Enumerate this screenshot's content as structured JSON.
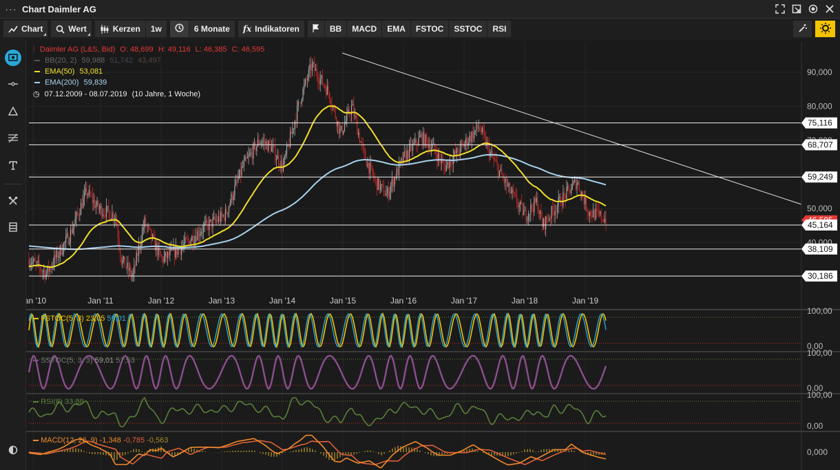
{
  "window": {
    "title": "Chart Daimler AG"
  },
  "toolbar": {
    "chart": "Chart",
    "value": "Wert",
    "candles": "Kerzen",
    "interval": "1w",
    "range": "6 Monate",
    "indicators": "Indikatoren",
    "quick": [
      "BB",
      "MACD",
      "EMA",
      "FSTOC",
      "SSTOC",
      "RSI"
    ]
  },
  "legend": {
    "main": "Daimler AG (L&S, Bid)",
    "o": "O: 48,699",
    "h": "H: 49,116",
    "l": "L: 46,385",
    "c": "C: 46,595",
    "bb_name": "BB(20, 2)",
    "bb_v1": "59,988",
    "bb_v2": "51,742",
    "bb_v3": "43,497",
    "ema50_name": "EMA(50)",
    "ema50_val": "53,081",
    "ema200_name": "EMA(200)",
    "ema200_val": "59,839",
    "period": "07.12.2009 - 08.07.2019",
    "period_note": "(10 Jahre, 1 Woche)"
  },
  "price_axis": [
    "90,000",
    "80,000",
    "70,000",
    "60,000",
    "50,000",
    "40,000"
  ],
  "levels": [
    "75,116",
    "68,707",
    "59,249",
    "45,164",
    "38,109",
    "30,186"
  ],
  "current_price": "46,595",
  "time_axis": [
    "Jan '10",
    "Jan '11",
    "Jan '12",
    "Jan '13",
    "Jan '14",
    "Jan '15",
    "Jan '16",
    "Jan '17",
    "Jan '18",
    "Jan '19"
  ],
  "panels": {
    "fstoc": {
      "name": "FSTOC(5, 3)",
      "v1": "23,05",
      "v2": "59,01",
      "top": "100,00",
      "bottom": "0,00"
    },
    "sstoc": {
      "name": "SSTOC(5, 3, 3)",
      "v1": "59,01",
      "v2": "57,53",
      "top": "100,00",
      "bottom": "0,00"
    },
    "rsi": {
      "name": "RSI(8)",
      "v1": "33,88",
      "top": "100,00",
      "bottom": "0,00"
    },
    "macd": {
      "name": "MACD(12, 26, 9)",
      "v1": "-1,348",
      "v2": "-0,785",
      "v3": "-0,563",
      "zero": "0,000"
    }
  },
  "colors": {
    "ema50": "#f2e02a",
    "ema200": "#a9d2ee",
    "accent": "#f5c400",
    "down": "#e53935"
  }
}
